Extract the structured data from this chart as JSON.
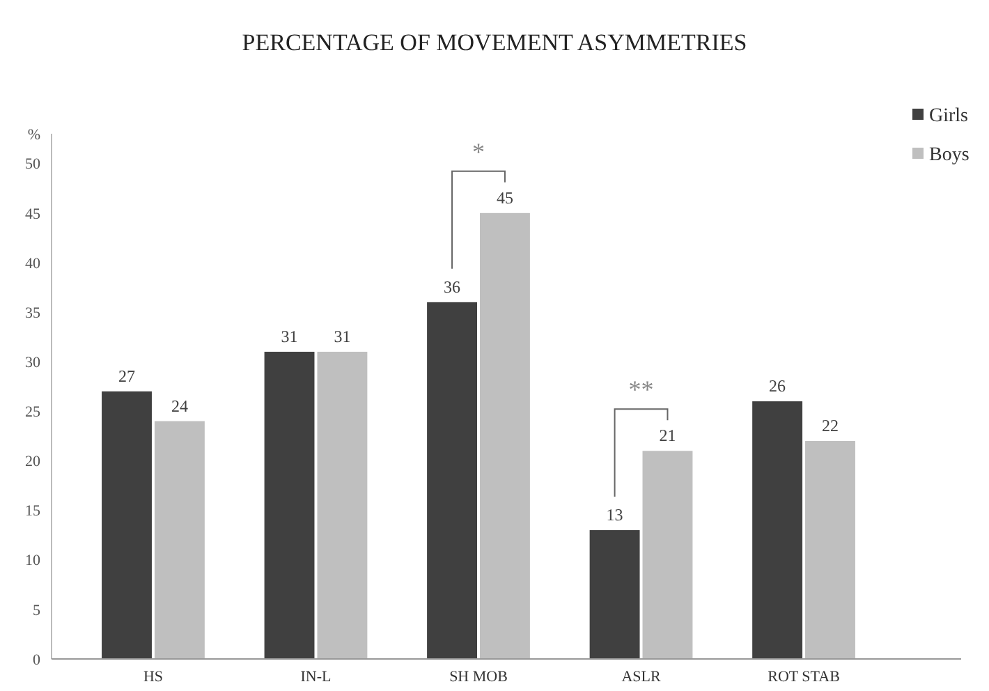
{
  "chart_data": {
    "type": "bar",
    "title": "PERCENTAGE OF MOVEMENT ASYMMETRIES",
    "ylabel": "%",
    "categories": [
      "HS",
      "IN-L",
      "SH MOB",
      "ASLR",
      "ROT STAB"
    ],
    "series": [
      {
        "name": "Girls",
        "color": "#404040",
        "values": [
          27,
          31,
          36,
          13,
          26
        ]
      },
      {
        "name": "Boys",
        "color": "#bfbfbf",
        "values": [
          24,
          31,
          45,
          21,
          22
        ]
      }
    ],
    "ylim": [
      0,
      53
    ],
    "yticks": [
      0,
      5,
      10,
      15,
      20,
      25,
      30,
      35,
      40,
      45,
      50
    ],
    "grid": false,
    "legend": "top right",
    "data_labels": true,
    "annotations": [
      "*",
      "**"
    ]
  }
}
